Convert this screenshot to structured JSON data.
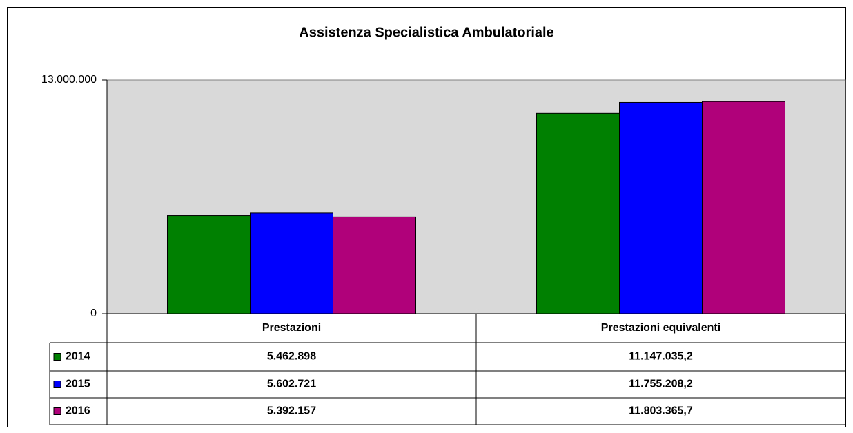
{
  "chart_data": {
    "type": "bar",
    "title": "Assistenza Specialistica Ambulatoriale",
    "categories": [
      "Prestazioni",
      "Prestazioni equivalenti"
    ],
    "series": [
      {
        "name": "2014",
        "color": "#008000",
        "values": [
          5462898,
          11147035.2
        ],
        "value_labels": [
          "5.462.898",
          "11.147.035,2"
        ]
      },
      {
        "name": "2015",
        "color": "#0000ff",
        "values": [
          5602721,
          11755208.2
        ],
        "value_labels": [
          "5.602.721",
          "11.755.208,2"
        ]
      },
      {
        "name": "2016",
        "color": "#b0007a",
        "values": [
          5392157,
          11803365.7
        ],
        "value_labels": [
          "5.392.157",
          "11.803.365,7"
        ]
      }
    ],
    "ylim": [
      0,
      13000000
    ],
    "yticks": [
      0,
      {
        "value": 13000000,
        "label": "13.000.000"
      }
    ],
    "legend": "table"
  }
}
